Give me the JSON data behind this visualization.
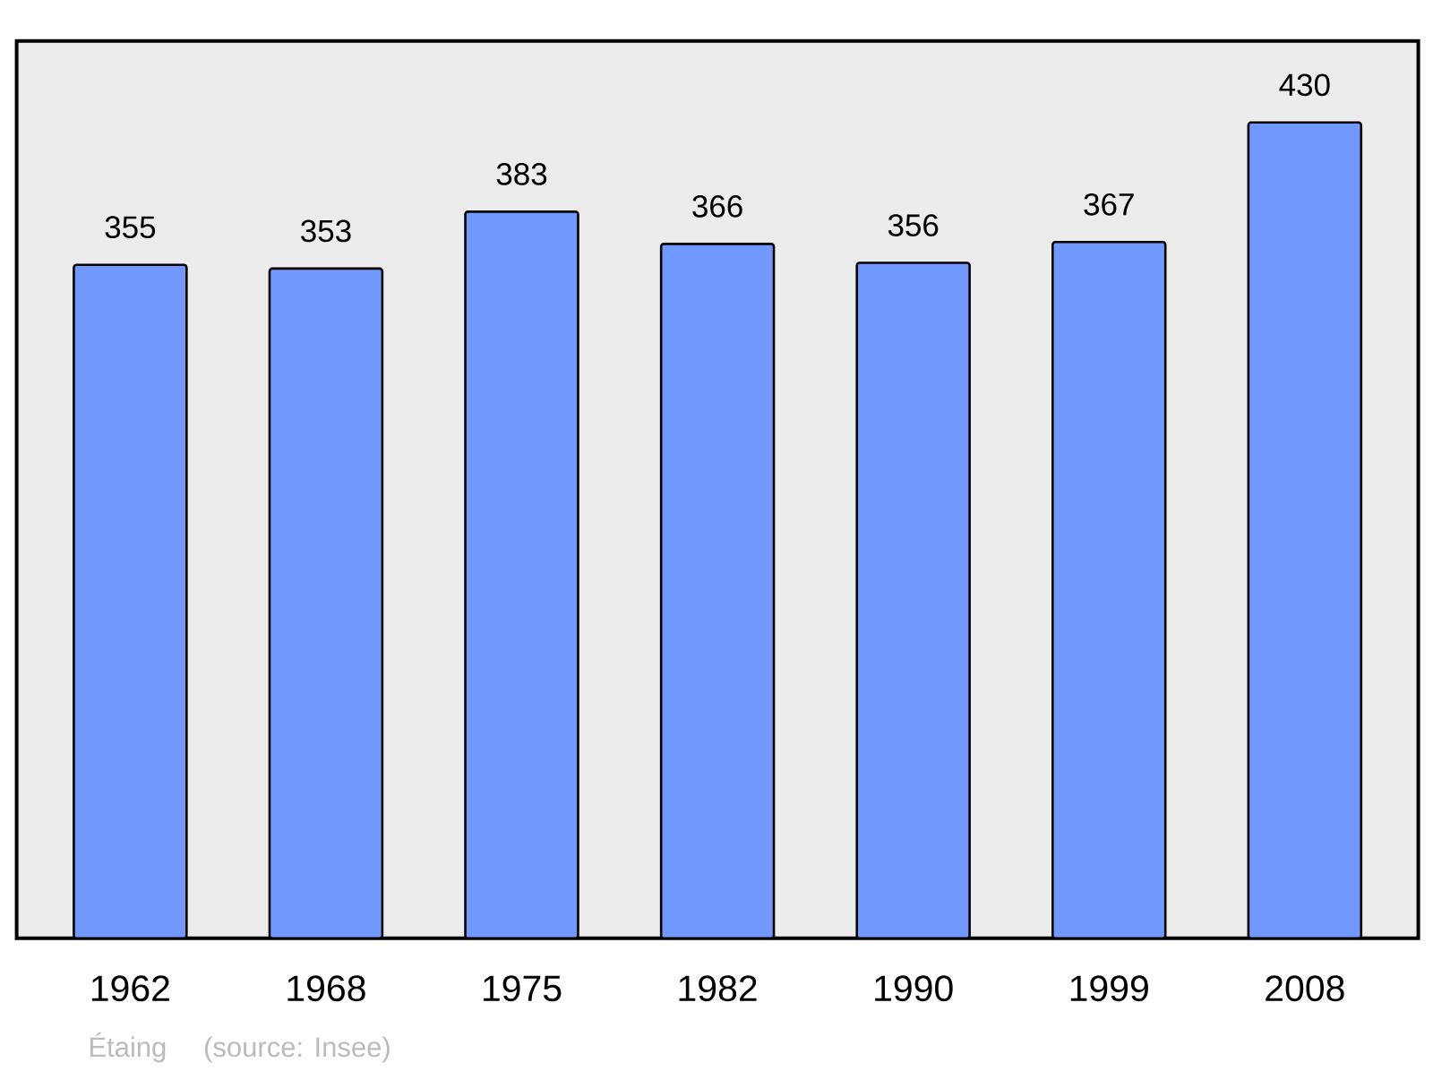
{
  "chart_data": {
    "type": "bar",
    "categories": [
      "1962",
      "1968",
      "1975",
      "1982",
      "1990",
      "1999",
      "2008"
    ],
    "values": [
      355,
      353,
      383,
      366,
      356,
      367,
      430
    ],
    "color": "#7098ff",
    "data_labels": true,
    "tick_labels": "x",
    "annotations": [
      "Étaing",
      "(source: Insee)"
    ]
  }
}
